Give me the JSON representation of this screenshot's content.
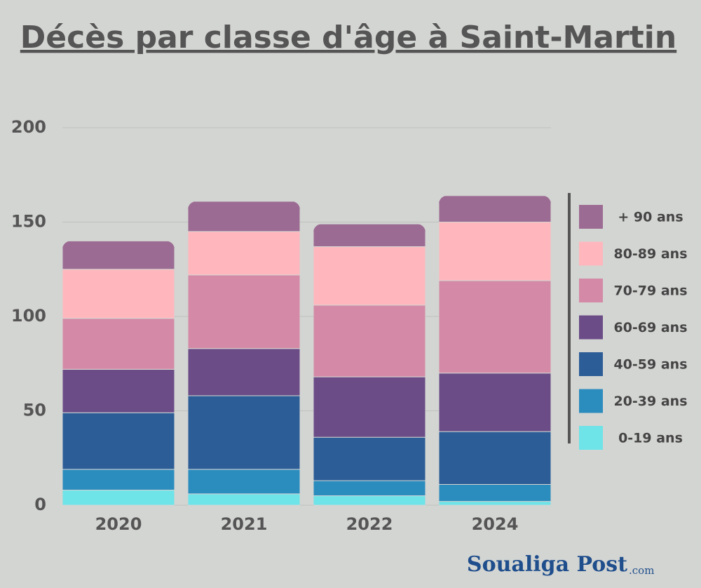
{
  "chart_data": {
    "type": "stacked_bar",
    "title": "Décès par classe d'âge à Saint-Martin",
    "categories": [
      "2020",
      "2021",
      "2022",
      "2024"
    ],
    "series": [
      {
        "name": "0-19 ans",
        "color": "#6ee3e8",
        "values": [
          8,
          6,
          5,
          2
        ]
      },
      {
        "name": "20-39 ans",
        "color": "#2b8cbe",
        "values": [
          11,
          13,
          8,
          9
        ]
      },
      {
        "name": "40-59 ans",
        "color": "#2c5d97",
        "values": [
          30,
          39,
          23,
          28
        ]
      },
      {
        "name": "60-69 ans",
        "color": "#6b4c87",
        "values": [
          23,
          25,
          32,
          31
        ]
      },
      {
        "name": "70-79 ans",
        "color": "#d48aa6",
        "values": [
          27,
          39,
          38,
          49
        ]
      },
      {
        "name": "80-89 ans",
        "color": "#ffb7bd",
        "values": [
          26,
          23,
          31,
          31
        ]
      },
      {
        "name": "+ 90 ans",
        "color": "#9c6b93",
        "values": [
          15,
          16,
          12,
          14
        ]
      }
    ],
    "ylim": [
      0,
      200
    ],
    "yticks": [
      0,
      50,
      100,
      150,
      200
    ],
    "grid": true,
    "legend": "right",
    "logo": {
      "name": "Soualiga Post",
      "suffix": ".com"
    }
  }
}
